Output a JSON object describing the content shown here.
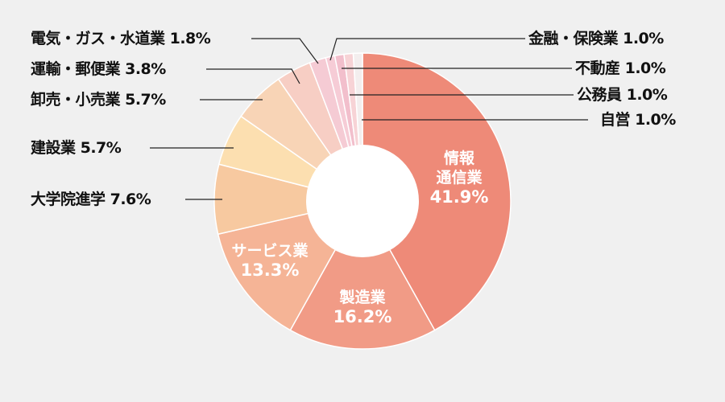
{
  "chart_data": {
    "type": "pie",
    "donut": true,
    "title": "",
    "categories": [
      "情報通信業",
      "製造業",
      "サービス業",
      "大学院進学",
      "建設業",
      "卸売・小売業",
      "運輸・郵便業",
      "電気・ガス・水道業",
      "金融・保険業",
      "不動産",
      "公務員",
      "自営"
    ],
    "values": [
      41.9,
      16.2,
      13.3,
      7.6,
      5.7,
      5.7,
      3.8,
      1.8,
      1.0,
      1.0,
      1.0,
      1.0
    ],
    "colors": [
      "#ee8a78",
      "#f19b86",
      "#f5b496",
      "#f7c9a0",
      "#fcdfb0",
      "#f8d4b6",
      "#f7cec4",
      "#f5cbd4",
      "#f6ccd6",
      "#f2bfcc",
      "#f7d3d6",
      "#f3eeee"
    ],
    "center": [
      450,
      250
    ],
    "outer_radius": 184,
    "inner_radius": 70,
    "legend_position": "callouts"
  },
  "inside_labels": [
    {
      "lines": [
        "情報",
        "通信業",
        "41.9%"
      ]
    },
    {
      "lines": [
        "製造業",
        "16.2%"
      ]
    },
    {
      "lines": [
        "サービス業",
        "13.3%"
      ]
    }
  ],
  "outside_labels": [
    {
      "text": "電気・ガス・水道業  1.8%",
      "side": "left"
    },
    {
      "text": "運輸・郵便業 3.8%",
      "side": "left"
    },
    {
      "text": "卸売・小売業 5.7%",
      "side": "left"
    },
    {
      "text": "建設業 5.7%",
      "side": "left"
    },
    {
      "text": "大学院進学 7.6%",
      "side": "left"
    },
    {
      "text": "金融・保険業  1.0%",
      "side": "right"
    },
    {
      "text": "不動産  1.0%",
      "side": "right"
    },
    {
      "text": "公務員  1.0%",
      "side": "right"
    },
    {
      "text": "自営  1.0%",
      "side": "right"
    }
  ]
}
